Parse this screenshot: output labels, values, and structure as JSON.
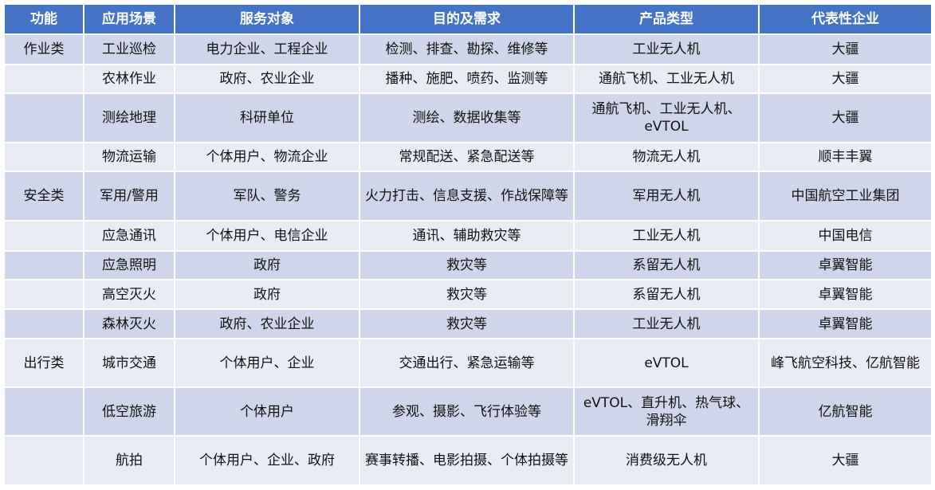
{
  "colors": {
    "header": "#4472C4",
    "row_dark": "#CFD5EA",
    "row_light": "#E9EBF5"
  },
  "headers": [
    "功能",
    "应用场景",
    "服务对象",
    "目的及需求",
    "产品类型",
    "代表性企业"
  ],
  "rows": [
    [
      "作业类",
      "工业巡检",
      "电力企业、工程企业",
      "检测、排查、勘探、维修等",
      "工业无人机",
      "大疆"
    ],
    [
      "",
      "农林作业",
      "政府、农业企业",
      "播种、施肥、喷药、监测等",
      "通航飞机、工业无人机",
      "大疆"
    ],
    [
      "",
      "测绘地理",
      "科研单位",
      "测绘、数据收集等",
      "通航飞机、工业无人机、eVTOL",
      "大疆"
    ],
    [
      "",
      "物流运输",
      "个体用户、物流企业",
      "常规配送、紧急配送等",
      "物流无人机",
      "顺丰丰翼"
    ],
    [
      "安全类",
      "军用/警用",
      "军队、警务",
      "火力打击、信息支援、作战保障等",
      "军用无人机",
      "中国航空工业集团"
    ],
    [
      "",
      "应急通讯",
      "个体用户、电信企业",
      "通讯、辅助救灾等",
      "工业无人机",
      "中国电信"
    ],
    [
      "",
      "应急照明",
      "政府",
      "救灾等",
      "系留无人机",
      "卓翼智能"
    ],
    [
      "",
      "高空灭火",
      "政府",
      "救灾等",
      "系留无人机",
      "卓翼智能"
    ],
    [
      "",
      "森林灭火",
      "政府、农业企业",
      "救灾等",
      "工业无人机",
      "卓翼智能"
    ],
    [
      "出行类",
      "城市交通",
      "个体用户、企业",
      "交通出行、紧急运输等",
      "eVTOL",
      "峰飞航空科技、亿航智能"
    ],
    [
      "",
      "低空旅游",
      "个体用户",
      "参观、摄影、飞行体验等",
      "eVTOL、直升机、热气球、滑翔伞",
      "亿航智能"
    ],
    [
      "",
      "航拍",
      "个体用户、企业、政府",
      "赛事转播、电影拍摄、个体拍摄等",
      "消费级无人机",
      "大疆"
    ]
  ]
}
